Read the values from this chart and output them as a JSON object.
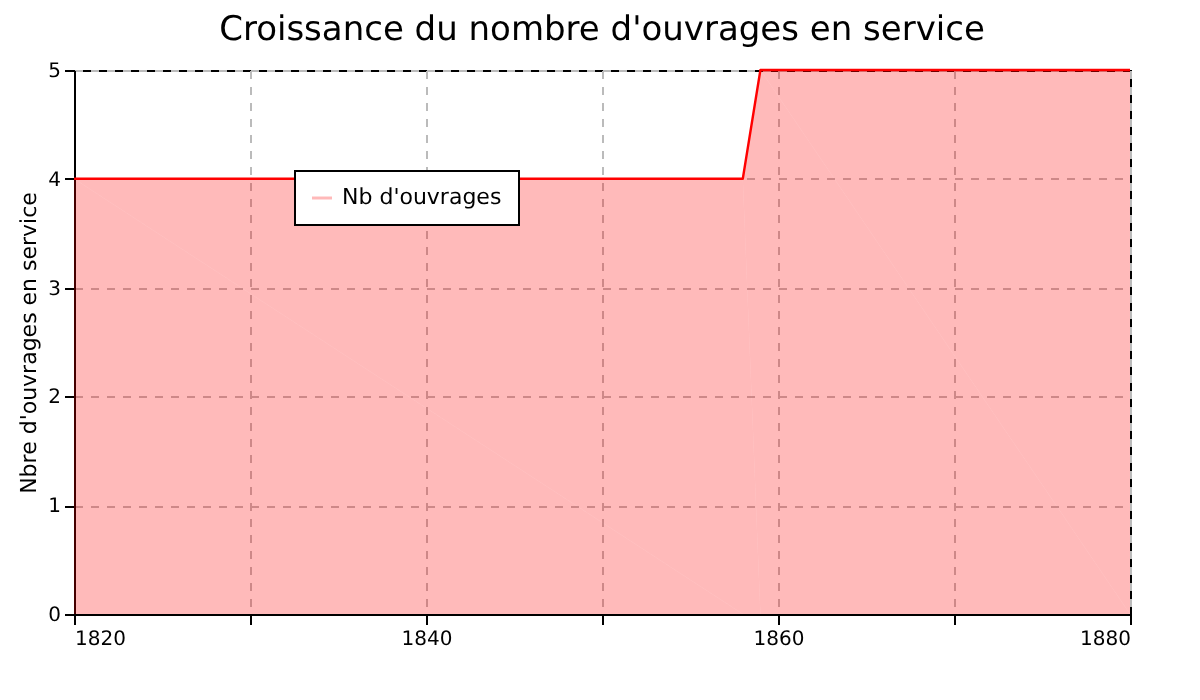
{
  "chart_data": {
    "type": "area",
    "title": "Croissance du nombre d'ouvrages en service",
    "ylabel": "Nbre d'ouvrages en service",
    "series": [
      {
        "name": "Nb d'ouvrages",
        "color": "#ff0000",
        "x": [
          1820,
          1858,
          1859,
          1880
        ],
        "values": [
          4,
          4,
          5,
          5
        ]
      }
    ],
    "xlim": [
      1820,
      1880
    ],
    "xticks": [
      1820,
      {
        "value": 1830,
        "label": null
      },
      1840,
      {
        "value": 1850,
        "label": null
      },
      1860,
      {
        "value": 1870,
        "label": null
      },
      1880
    ],
    "ylim": [
      0,
      5
    ],
    "yticks": [
      0,
      1,
      2,
      3,
      4,
      5
    ],
    "grid": true,
    "legend": "top left"
  }
}
